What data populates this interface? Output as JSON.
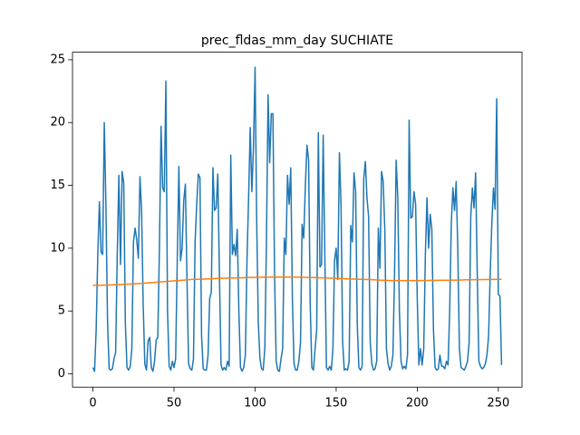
{
  "chart_data": {
    "type": "line",
    "title": "prec_fldas_mm_day SUCHIATE",
    "x": [
      0,
      1,
      2,
      3,
      4,
      5,
      6,
      7,
      8,
      9,
      10,
      11,
      12,
      13,
      14,
      15,
      16,
      17,
      18,
      19,
      20,
      21,
      22,
      23,
      24,
      25,
      26,
      27,
      28,
      29,
      30,
      31,
      32,
      33,
      34,
      35,
      36,
      37,
      38,
      39,
      40,
      41,
      42,
      43,
      44,
      45,
      46,
      47,
      48,
      49,
      50,
      51,
      52,
      53,
      54,
      55,
      56,
      57,
      58,
      59,
      60,
      61,
      62,
      63,
      64,
      65,
      66,
      67,
      68,
      69,
      70,
      71,
      72,
      73,
      74,
      75,
      76,
      77,
      78,
      79,
      80,
      81,
      82,
      83,
      84,
      85,
      86,
      87,
      88,
      89,
      90,
      91,
      92,
      93,
      94,
      95,
      96,
      97,
      98,
      99,
      100,
      101,
      102,
      103,
      104,
      105,
      106,
      107,
      108,
      109,
      110,
      111,
      112,
      113,
      114,
      115,
      116,
      117,
      118,
      119,
      120,
      121,
      122,
      123,
      124,
      125,
      126,
      127,
      128,
      129,
      130,
      131,
      132,
      133,
      134,
      135,
      136,
      137,
      138,
      139,
      140,
      141,
      142,
      143,
      144,
      145,
      146,
      147,
      148,
      149,
      150,
      151,
      152,
      153,
      154,
      155,
      156,
      157,
      158,
      159,
      160,
      161,
      162,
      163,
      164,
      165,
      166,
      167,
      168,
      169,
      170,
      171,
      172,
      173,
      174,
      175,
      176,
      177,
      178,
      179,
      180,
      181,
      182,
      183,
      184,
      185,
      186,
      187,
      188,
      189,
      190,
      191,
      192,
      193,
      194,
      195,
      196,
      197,
      198,
      199,
      200,
      201,
      202,
      203,
      204,
      205,
      206,
      207,
      208,
      209,
      210,
      211,
      212,
      213,
      214,
      215,
      216,
      217,
      218,
      219,
      220,
      221,
      222,
      223,
      224,
      225,
      226,
      227,
      228,
      229,
      230,
      231,
      232,
      233,
      234,
      235,
      236,
      237,
      238,
      239,
      240,
      241,
      242,
      243,
      244,
      245,
      246,
      247,
      248,
      249,
      250,
      251,
      252
    ],
    "series": [
      {
        "color": "#1f77b4",
        "values": [
          0.5,
          0.2,
          3.5,
          9.5,
          13.7,
          9.7,
          9.5,
          20.0,
          13.5,
          4.2,
          0.4,
          0.3,
          0.4,
          1.2,
          1.7,
          9.5,
          15.8,
          8.7,
          16.1,
          15.2,
          4.0,
          0.5,
          0.3,
          0.6,
          2.0,
          10.5,
          11.6,
          10.7,
          9.2,
          15.7,
          13.0,
          5.5,
          0.8,
          0.3,
          2.6,
          2.9,
          0.5,
          0.2,
          1.0,
          2.7,
          2.9,
          10.0,
          19.7,
          14.8,
          14.5,
          23.3,
          5.0,
          0.6,
          0.3,
          1.0,
          0.5,
          1.2,
          9.0,
          16.5,
          9.0,
          10.0,
          13.8,
          15.1,
          7.5,
          0.8,
          0.4,
          0.3,
          1.2,
          10.5,
          13.5,
          15.9,
          15.6,
          3.0,
          0.4,
          0.3,
          0.3,
          1.5,
          6.0,
          6.5,
          16.4,
          13.0,
          13.2,
          15.9,
          8.0,
          0.7,
          0.3,
          0.5,
          0.3,
          1.0,
          0.6,
          17.4,
          9.5,
          10.3,
          9.4,
          11.5,
          5.0,
          0.5,
          0.2,
          0.5,
          1.5,
          9.0,
          14.0,
          19.6,
          14.5,
          18.0,
          24.4,
          12.0,
          4.0,
          1.2,
          0.4,
          0.3,
          2.0,
          10.5,
          22.2,
          16.8,
          20.7,
          20.7,
          8.0,
          1.0,
          0.3,
          0.2,
          1.2,
          2.0,
          10.8,
          9.5,
          15.8,
          13.5,
          16.4,
          6.0,
          0.8,
          0.3,
          0.3,
          1.0,
          2.5,
          11.9,
          10.8,
          15.0,
          18.2,
          17.0,
          5.5,
          0.5,
          0.3,
          2.0,
          3.5,
          19.2,
          8.5,
          8.7,
          19.0,
          9.5,
          0.5,
          0.3,
          0.6,
          0.3,
          2.0,
          9.0,
          10.0,
          7.5,
          17.6,
          13.5,
          2.5,
          0.3,
          0.4,
          0.3,
          1.0,
          11.8,
          10.5,
          16.0,
          14.5,
          4.0,
          0.5,
          0.3,
          0.6,
          15.5,
          16.9,
          14.0,
          12.5,
          2.5,
          0.8,
          0.3,
          0.4,
          1.0,
          11.6,
          8.4,
          16.1,
          15.3,
          11.5,
          2.0,
          0.8,
          0.3,
          0.6,
          1.5,
          8.0,
          17.0,
          14.0,
          5.0,
          1.0,
          0.4,
          0.6,
          0.4,
          1.5,
          20.2,
          12.4,
          12.5,
          14.5,
          13.5,
          6.0,
          0.7,
          2.0,
          0.7,
          2.0,
          9.5,
          14.0,
          10.0,
          12.7,
          11.5,
          3.5,
          0.5,
          0.3,
          0.4,
          1.5,
          0.6,
          0.6,
          0.4,
          1.0,
          0.7,
          5.0,
          12.0,
          14.8,
          13.0,
          15.3,
          10.0,
          2.0,
          0.5,
          0.4,
          0.3,
          0.6,
          1.0,
          2.5,
          12.5,
          14.8,
          13.2,
          16.0,
          8.0,
          1.0,
          0.6,
          0.4,
          0.5,
          0.8,
          1.5,
          3.0,
          8.0,
          12.0,
          14.8,
          13.1,
          21.9,
          6.3,
          6.2,
          0.7
        ]
      },
      {
        "color": "#ff7f0e",
        "values": [
          7.05,
          7.05,
          7.05,
          7.05,
          7.05,
          7.05,
          7.06,
          7.06,
          7.06,
          7.07,
          7.07,
          7.08,
          7.08,
          7.09,
          7.09,
          7.1,
          7.1,
          7.11,
          7.12,
          7.12,
          7.13,
          7.14,
          7.14,
          7.15,
          7.16,
          7.16,
          7.17,
          7.18,
          7.19,
          7.19,
          7.2,
          7.21,
          7.22,
          7.23,
          7.24,
          7.25,
          7.26,
          7.27,
          7.28,
          7.29,
          7.3,
          7.31,
          7.32,
          7.33,
          7.34,
          7.35,
          7.36,
          7.37,
          7.38,
          7.39,
          7.4,
          7.41,
          7.42,
          7.43,
          7.44,
          7.45,
          7.46,
          7.47,
          7.48,
          7.49,
          7.5,
          7.51,
          7.51,
          7.52,
          7.52,
          7.53,
          7.53,
          7.54,
          7.54,
          7.55,
          7.55,
          7.56,
          7.56,
          7.57,
          7.57,
          7.58,
          7.58,
          7.59,
          7.59,
          7.6,
          7.6,
          7.61,
          7.61,
          7.62,
          7.62,
          7.63,
          7.63,
          7.63,
          7.64,
          7.64,
          7.64,
          7.65,
          7.65,
          7.65,
          7.66,
          7.66,
          7.66,
          7.67,
          7.67,
          7.67,
          7.68,
          7.68,
          7.68,
          7.68,
          7.69,
          7.69,
          7.69,
          7.69,
          7.69,
          7.7,
          7.7,
          7.7,
          7.7,
          7.7,
          7.7,
          7.7,
          7.7,
          7.7,
          7.7,
          7.7,
          7.7,
          7.7,
          7.7,
          7.69,
          7.69,
          7.69,
          7.69,
          7.69,
          7.68,
          7.68,
          7.68,
          7.68,
          7.67,
          7.67,
          7.67,
          7.66,
          7.66,
          7.66,
          7.65,
          7.65,
          7.65,
          7.64,
          7.64,
          7.63,
          7.63,
          7.62,
          7.62,
          7.61,
          7.61,
          7.6,
          7.6,
          7.59,
          7.59,
          7.58,
          7.58,
          7.57,
          7.57,
          7.56,
          7.56,
          7.55,
          7.55,
          7.54,
          7.54,
          7.53,
          7.53,
          7.52,
          7.52,
          7.51,
          7.51,
          7.5,
          7.5,
          7.49,
          7.49,
          7.48,
          7.48,
          7.47,
          7.46,
          7.46,
          7.45,
          7.45,
          7.44,
          7.44,
          7.43,
          7.43,
          7.42,
          7.42,
          7.42,
          7.42,
          7.42,
          7.42,
          7.42,
          7.42,
          7.42,
          7.42,
          7.42,
          7.42,
          7.42,
          7.42,
          7.42,
          7.42,
          7.42,
          7.42,
          7.43,
          7.43,
          7.43,
          7.43,
          7.43,
          7.44,
          7.44,
          7.44,
          7.44,
          7.44,
          7.44,
          7.45,
          7.45,
          7.45,
          7.45,
          7.45,
          7.45,
          7.45,
          7.45,
          7.46,
          7.46,
          7.46,
          7.46,
          7.47,
          7.47,
          7.47,
          7.47,
          7.48,
          7.48,
          7.48,
          7.48,
          7.48,
          7.49,
          7.49,
          7.49,
          7.49,
          7.49,
          7.5,
          7.5,
          7.5,
          7.5,
          7.51,
          7.51,
          7.51,
          7.51,
          7.51,
          7.52,
          7.52,
          7.52,
          7.52,
          7.52
        ]
      }
    ],
    "xlim": [
      -12.6,
      264.6
    ],
    "xticks": [
      0,
      50,
      100,
      150,
      200,
      250
    ],
    "ylim": [
      -1.06,
      25.6
    ],
    "yticks": [
      0,
      5,
      10,
      15,
      20,
      25
    ],
    "grid": false
  }
}
